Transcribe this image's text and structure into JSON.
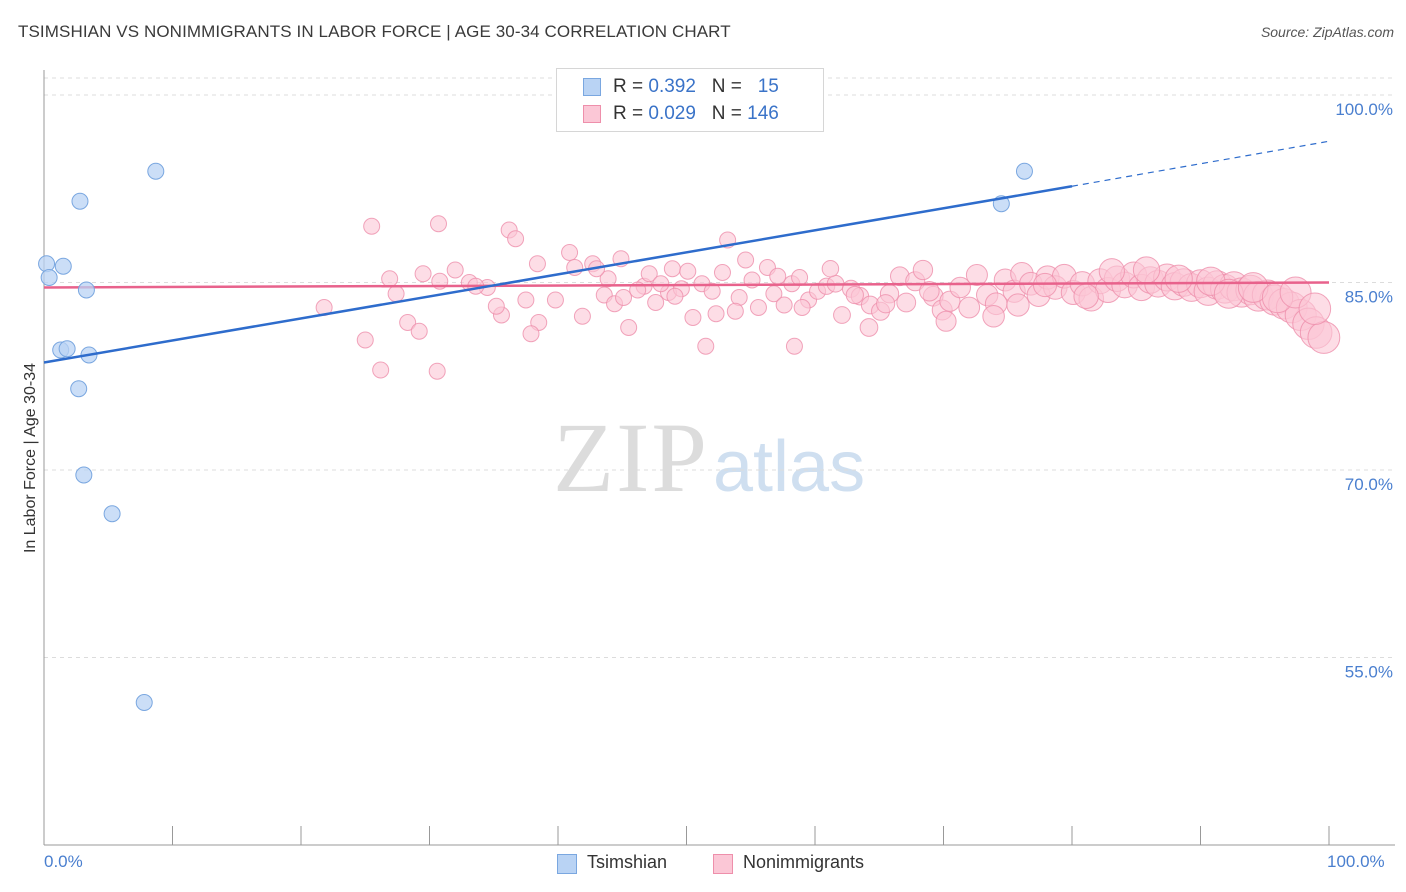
{
  "header": {
    "title": "TSIMSHIAN VS NONIMMIGRANTS IN LABOR FORCE | AGE 30-34 CORRELATION CHART",
    "source": "Source: ZipAtlas.com"
  },
  "watermark": {
    "zip": "ZIP",
    "atlas": "atlas"
  },
  "legend": {
    "rows": [
      {
        "r_label": "R = ",
        "r_value": "0.392",
        "n_label": "N = ",
        "n_value": "15",
        "color": "#b9d3f4",
        "border": "#7aa7e0"
      },
      {
        "r_label": "R = ",
        "r_value": "0.029",
        "n_label": "N = ",
        "n_value": "146",
        "color": "#fbc7d6",
        "border": "#ee8fab"
      }
    ]
  },
  "bottom_legend": {
    "items": [
      {
        "label": "Tsimshian",
        "color": "#b9d3f4",
        "border": "#7aa7e0"
      },
      {
        "label": "Nonimmigrants",
        "color": "#fbc7d6",
        "border": "#ee8fab"
      }
    ]
  },
  "chart_data": {
    "type": "scatter",
    "xlabel": "",
    "ylabel": "In Labor Force | Age 30-34",
    "xlim": [
      0,
      100
    ],
    "ylim": [
      40,
      102
    ],
    "x_tick_labels": [
      "0.0%",
      "100.0%"
    ],
    "y_ticks": [
      55,
      70,
      85,
      100
    ],
    "y_tick_labels": [
      "55.0%",
      "70.0%",
      "85.0%",
      "100.0%"
    ],
    "grid": true,
    "series": [
      {
        "name": "Tsimshian",
        "color": "#7aa7e0",
        "fill": "#b9d3f4",
        "points": [
          [
            0.2,
            86.5
          ],
          [
            0.4,
            85.4
          ],
          [
            1.3,
            79.6
          ],
          [
            1.8,
            79.7
          ],
          [
            1.5,
            86.3
          ],
          [
            2.8,
            91.5
          ],
          [
            3.5,
            79.2
          ],
          [
            3.3,
            84.4
          ],
          [
            2.7,
            76.5
          ],
          [
            3.1,
            69.6
          ],
          [
            5.3,
            66.5
          ],
          [
            8.7,
            93.9
          ],
          [
            7.8,
            51.4
          ],
          [
            74.5,
            91.3
          ],
          [
            76.3,
            93.9
          ]
        ],
        "trend": {
          "x": [
            0,
            80
          ],
          "y": [
            78.6,
            92.7
          ],
          "dashed_to": [
            100,
            96.3
          ]
        }
      },
      {
        "name": "Nonimmigrants",
        "color": "#ee8fab",
        "fill": "#fbc7d6",
        "points": [
          [
            25.5,
            89.5
          ],
          [
            30.7,
            89.7
          ],
          [
            36.2,
            89.2
          ],
          [
            36.7,
            88.5
          ],
          [
            38.4,
            86.5
          ],
          [
            26.9,
            85.3
          ],
          [
            27.4,
            84.1
          ],
          [
            29.5,
            85.7
          ],
          [
            30.8,
            85.1
          ],
          [
            33.1,
            85.0
          ],
          [
            21.8,
            83.0
          ],
          [
            25.0,
            80.4
          ],
          [
            26.2,
            78.0
          ],
          [
            28.3,
            81.8
          ],
          [
            29.2,
            81.1
          ],
          [
            30.6,
            77.9
          ],
          [
            34.5,
            84.6
          ],
          [
            35.6,
            82.4
          ],
          [
            37.5,
            83.6
          ],
          [
            38.5,
            81.8
          ],
          [
            40.9,
            87.4
          ],
          [
            41.3,
            86.2
          ],
          [
            42.7,
            86.5
          ],
          [
            43.6,
            84.0
          ],
          [
            43.9,
            85.3
          ],
          [
            44.4,
            83.3
          ],
          [
            45.1,
            83.8
          ],
          [
            45.5,
            81.4
          ],
          [
            46.7,
            84.7
          ],
          [
            47.1,
            85.7
          ],
          [
            47.6,
            83.4
          ],
          [
            48.6,
            84.2
          ],
          [
            48.9,
            86.1
          ],
          [
            49.6,
            84.5
          ],
          [
            50.1,
            85.9
          ],
          [
            50.5,
            82.2
          ],
          [
            51.2,
            84.9
          ],
          [
            51.5,
            79.9
          ],
          [
            52.3,
            82.5
          ],
          [
            52.8,
            85.8
          ],
          [
            53.2,
            88.4
          ],
          [
            54.1,
            83.8
          ],
          [
            55.1,
            85.2
          ],
          [
            55.6,
            83.0
          ],
          [
            56.3,
            86.2
          ],
          [
            56.8,
            84.1
          ],
          [
            57.6,
            83.2
          ],
          [
            58.2,
            84.9
          ],
          [
            58.8,
            85.4
          ],
          [
            59.5,
            83.6
          ],
          [
            60.2,
            84.3
          ],
          [
            60.9,
            84.7
          ],
          [
            61.6,
            84.9
          ],
          [
            62.1,
            82.4
          ],
          [
            62.8,
            84.5
          ],
          [
            63.5,
            83.9
          ],
          [
            64.3,
            83.2
          ],
          [
            65.1,
            82.7
          ],
          [
            65.8,
            84.1
          ],
          [
            66.6,
            85.5
          ],
          [
            67.1,
            83.4
          ],
          [
            67.8,
            85.1
          ],
          [
            68.4,
            86.0
          ],
          [
            69.2,
            83.9
          ],
          [
            69.9,
            82.8
          ],
          [
            70.5,
            83.5
          ],
          [
            71.3,
            84.6
          ],
          [
            72.0,
            83.0
          ],
          [
            72.6,
            85.6
          ],
          [
            73.4,
            84.0
          ],
          [
            74.1,
            83.3
          ],
          [
            74.8,
            85.2
          ],
          [
            75.5,
            84.3
          ],
          [
            76.1,
            85.7
          ],
          [
            76.8,
            84.9
          ],
          [
            77.4,
            84.0
          ],
          [
            78.1,
            85.4
          ],
          [
            78.7,
            84.6
          ],
          [
            79.4,
            85.5
          ],
          [
            80.1,
            84.2
          ],
          [
            80.8,
            84.9
          ],
          [
            81.5,
            83.7
          ],
          [
            82.2,
            85.1
          ],
          [
            82.8,
            84.4
          ],
          [
            83.5,
            85.3
          ],
          [
            84.1,
            84.8
          ],
          [
            84.8,
            85.6
          ],
          [
            85.4,
            84.6
          ],
          [
            86.1,
            85.2
          ],
          [
            86.7,
            84.9
          ],
          [
            87.4,
            85.4
          ],
          [
            88.0,
            84.7
          ],
          [
            88.7,
            85.0
          ],
          [
            89.3,
            84.6
          ],
          [
            90.0,
            84.9
          ],
          [
            90.6,
            84.3
          ],
          [
            91.3,
            84.8
          ],
          [
            91.9,
            84.5
          ],
          [
            92.6,
            84.7
          ],
          [
            93.2,
            84.2
          ],
          [
            93.9,
            84.4
          ],
          [
            94.5,
            83.9
          ],
          [
            95.2,
            84.0
          ],
          [
            95.8,
            83.6
          ],
          [
            96.5,
            83.3
          ],
          [
            97.1,
            83.0
          ],
          [
            97.8,
            82.4
          ],
          [
            98.4,
            81.7
          ],
          [
            99.0,
            81.0
          ],
          [
            99.6,
            80.6
          ],
          [
            64.2,
            81.4
          ],
          [
            59.0,
            83.0
          ],
          [
            58.4,
            79.9
          ],
          [
            53.8,
            82.7
          ],
          [
            46.2,
            84.4
          ],
          [
            35.2,
            83.1
          ],
          [
            39.8,
            83.6
          ],
          [
            32.0,
            86.0
          ],
          [
            33.6,
            84.7
          ],
          [
            44.9,
            86.9
          ],
          [
            68.9,
            84.3
          ],
          [
            70.2,
            81.9
          ],
          [
            73.9,
            82.3
          ],
          [
            75.8,
            83.2
          ],
          [
            77.9,
            84.8
          ],
          [
            81.1,
            83.9
          ],
          [
            83.1,
            85.9
          ],
          [
            85.8,
            86.0
          ],
          [
            88.3,
            85.3
          ],
          [
            90.8,
            85.1
          ],
          [
            92.2,
            84.1
          ],
          [
            94.1,
            84.6
          ],
          [
            96.0,
            83.8
          ],
          [
            97.4,
            84.2
          ],
          [
            98.9,
            82.9
          ],
          [
            61.2,
            86.1
          ],
          [
            63.1,
            84.0
          ],
          [
            65.5,
            83.3
          ],
          [
            57.1,
            85.5
          ],
          [
            54.6,
            86.8
          ],
          [
            49.1,
            83.9
          ],
          [
            41.9,
            82.3
          ],
          [
            37.9,
            80.9
          ],
          [
            43.0,
            86.1
          ],
          [
            48.0,
            84.9
          ],
          [
            52.0,
            84.3
          ]
        ],
        "trend": {
          "x": [
            0,
            100
          ],
          "y": [
            84.6,
            85.0
          ]
        }
      }
    ]
  }
}
